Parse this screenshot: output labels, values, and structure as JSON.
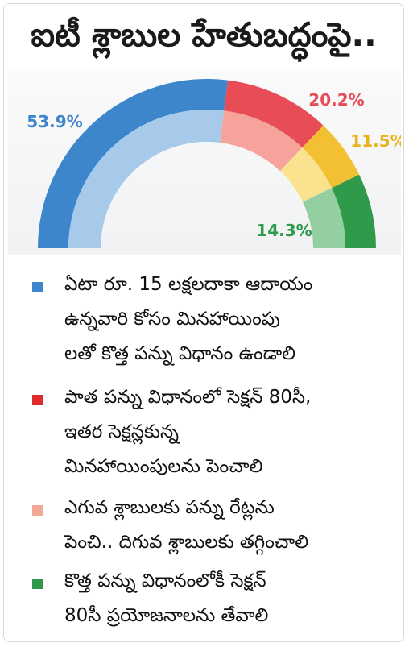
{
  "title": "ఐటీ శ్లాబుల హేతుబద్ధంపై..",
  "colors": {
    "blue": "#3d86cc",
    "red": "#e84d57",
    "pink": "#f5a39b",
    "yellow": "#f3c033",
    "green": "#2e9a4a"
  },
  "chart_data": {
    "type": "pie",
    "style": "semicircle-donut",
    "categories": [
      "ఏటా రూ. 15 లక్షలదాకా ఆదాయం ఉన్నవారి కోసం మినహాయింపులతో కొత్త పన్ను విధానం ఉండాలి",
      "పాత పన్ను విధానంలో సెక్షన్ 80సీ, ఇతర సెక్షన్లకున్న మినహాయింపులను పెంచాలి",
      "ఎగువ శ్లాబులకు పన్ను రేట్లను పెంచి.. దిగువ శ్లాబులకు తగ్గించాలి",
      "కొత్త పన్ను విధానంలోకీ సెక్షన్ 80సీ ప్రయోజనాలను తేవాలి"
    ],
    "values": [
      53.9,
      20.2,
      11.5,
      14.3
    ],
    "labels": [
      "53.9%",
      "20.2%",
      "11.5%",
      "14.3%"
    ]
  },
  "legend": [
    {
      "color": "#3d86cc",
      "lines": [
        "ఏటా రూ. 15 లక్షలదాకా ఆదాయం",
        "ఉన్నవారి కోసం మినహాయింపు",
        "లతో కొత్త పన్ను విధానం ఉండాలి"
      ]
    },
    {
      "color": "#e02b2b",
      "lines": [
        "పాత పన్ను విధానంలో సెక్షన్ 80సీ,",
        "ఇతర సెక్షన్లకున్న",
        "మినహాయింపులను పెంచాలి"
      ]
    },
    {
      "color": "#f3a894",
      "lines": [
        "ఎగువ శ్లాబులకు పన్ను రేట్లను",
        "పెంచి.. దిగువ శ్లాబులకు తగ్గించాలి"
      ]
    },
    {
      "color": "#2e9a4a",
      "lines": [
        "కొత్త పన్ను విధానంలోకీ సెక్షన్",
        "80సీ ప్రయోజనాలను తేవాలి"
      ]
    }
  ]
}
